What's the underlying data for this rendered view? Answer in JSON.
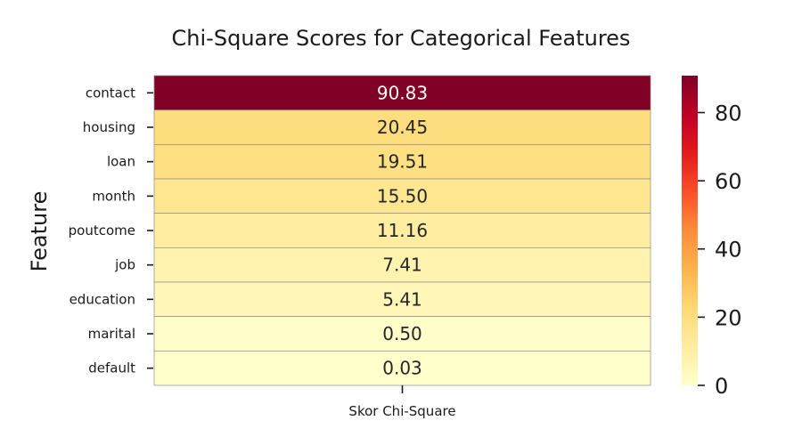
{
  "chart_data": {
    "type": "heatmap",
    "title": "Chi-Square Scores for Categorical Features",
    "ylabel": "Feature",
    "xlabel": "",
    "columns": [
      "Skor Chi-Square"
    ],
    "rows": [
      "contact",
      "housing",
      "loan",
      "month",
      "poutcome",
      "job",
      "education",
      "marital",
      "default"
    ],
    "values": [
      90.83,
      20.45,
      19.51,
      15.5,
      11.16,
      7.41,
      5.41,
      0.5,
      0.03
    ],
    "value_labels": [
      "90.83",
      "20.45",
      "19.51",
      "15.50",
      "11.16",
      "7.41",
      "5.41",
      "0.50",
      "0.03"
    ],
    "colormap": "YlOrRd",
    "colorbar": {
      "range": [
        0,
        90.83
      ],
      "ticks": [
        0,
        20,
        40,
        60,
        80
      ],
      "tick_labels": [
        "0",
        "20",
        "40",
        "60",
        "80"
      ]
    },
    "grid": false,
    "legend": "colorbar-right"
  }
}
